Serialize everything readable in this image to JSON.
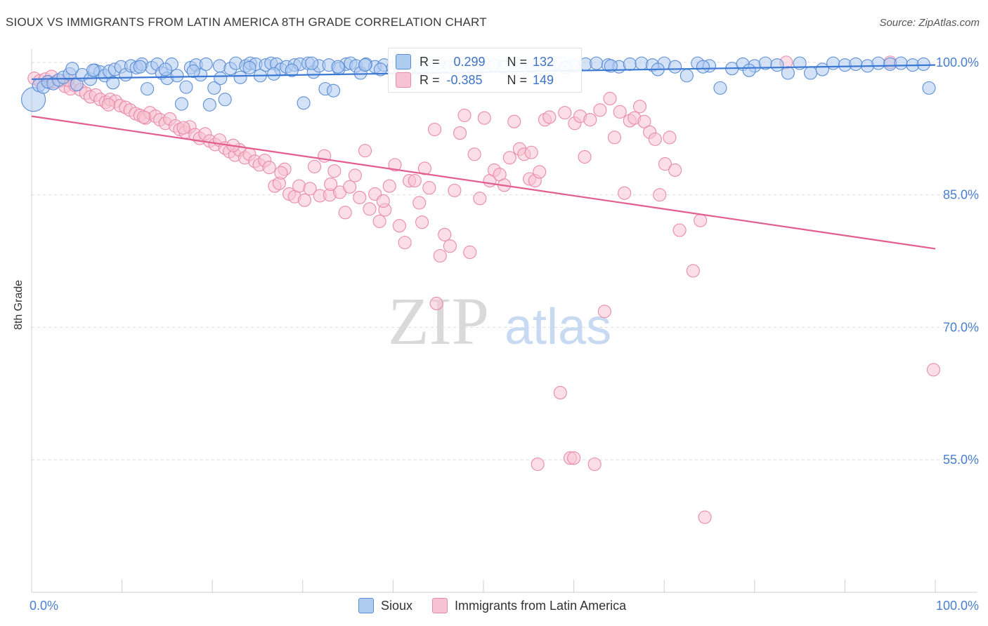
{
  "header": {
    "title": "SIOUX VS IMMIGRANTS FROM LATIN AMERICA 8TH GRADE CORRELATION CHART",
    "source": "Source: ZipAtlas.com"
  },
  "watermark": {
    "zip": "ZIP",
    "atlas": "atlas"
  },
  "legend_box": {
    "rows": [
      {
        "r_label": "R =",
        "r_value": "0.299",
        "n_label": "N =",
        "n_value": "132"
      },
      {
        "r_label": "R =",
        "r_value": "-0.385",
        "n_label": "N =",
        "n_value": "149"
      }
    ]
  },
  "colors": {
    "sioux_fill": "#aecbf0",
    "sioux_stroke": "#5b8ed6",
    "sioux_line": "#3a78d4",
    "latin_fill": "#f7c3d4",
    "latin_stroke": "#e98aaa",
    "latin_line": "#e35d8e",
    "tick_label": "#4a7fd0",
    "grid": "#dddddd"
  },
  "chart_data": {
    "type": "scatter",
    "title": "SIOUX VS IMMIGRANTS FROM LATIN AMERICA 8TH GRADE CORRELATION CHART",
    "xlabel": "",
    "ylabel": "8th Grade",
    "xlim": [
      0,
      100
    ],
    "ylim": [
      40,
      101.5
    ],
    "x_tick_labels": [
      "0.0%",
      "100.0%"
    ],
    "y_ticks": [
      55,
      70,
      85,
      100
    ],
    "y_tick_labels": [
      "55.0%",
      "70.0%",
      "85.0%",
      "100.0%"
    ],
    "legend": [
      "Sioux",
      "Immigrants from Latin America"
    ],
    "series": [
      {
        "name": "Sioux",
        "r": 0.299,
        "n": 132,
        "trend": {
          "x": [
            0,
            100
          ],
          "y": [
            98.1,
            99.7
          ]
        },
        "points": [
          [
            0.2,
            95.8
          ],
          [
            0.8,
            97.4
          ],
          [
            1.3,
            97.2
          ],
          [
            1.8,
            97.8
          ],
          [
            2.4,
            97.6
          ],
          [
            3.0,
            98.0
          ],
          [
            3.5,
            98.3
          ],
          [
            4.2,
            98.7
          ],
          [
            4.5,
            99.3
          ],
          [
            5.0,
            97.5
          ],
          [
            5.6,
            98.6
          ],
          [
            6.5,
            98.1
          ],
          [
            7.0,
            99.1
          ],
          [
            7.6,
            98.9
          ],
          [
            8.1,
            98.5
          ],
          [
            8.6,
            99.0
          ],
          [
            9.2,
            99.2
          ],
          [
            9.9,
            99.5
          ],
          [
            10.4,
            98.6
          ],
          [
            11.0,
            99.6
          ],
          [
            11.6,
            99.4
          ],
          [
            12.2,
            99.8
          ],
          [
            12.8,
            97.0
          ],
          [
            13.3,
            99.4
          ],
          [
            13.9,
            99.8
          ],
          [
            14.4,
            98.8
          ],
          [
            15.0,
            98.2
          ],
          [
            15.5,
            99.8
          ],
          [
            16.1,
            98.5
          ],
          [
            16.6,
            95.3
          ],
          [
            17.1,
            97.2
          ],
          [
            17.6,
            99.4
          ],
          [
            18.2,
            99.7
          ],
          [
            18.7,
            98.6
          ],
          [
            19.3,
            99.8
          ],
          [
            19.7,
            95.2
          ],
          [
            20.2,
            97.1
          ],
          [
            20.8,
            99.6
          ],
          [
            21.4,
            95.8
          ],
          [
            22.0,
            99.3
          ],
          [
            22.6,
            99.9
          ],
          [
            23.1,
            98.3
          ],
          [
            23.7,
            99.6
          ],
          [
            24.2,
            99.9
          ],
          [
            24.8,
            99.8
          ],
          [
            25.3,
            98.5
          ],
          [
            25.9,
            99.7
          ],
          [
            26.5,
            99.9
          ],
          [
            27.1,
            99.8
          ],
          [
            27.6,
            99.2
          ],
          [
            28.2,
            99.5
          ],
          [
            29.1,
            99.7
          ],
          [
            29.7,
            99.8
          ],
          [
            30.1,
            95.4
          ],
          [
            30.6,
            99.9
          ],
          [
            31.2,
            98.9
          ],
          [
            31.8,
            99.6
          ],
          [
            32.5,
            97.0
          ],
          [
            32.9,
            99.7
          ],
          [
            33.4,
            96.8
          ],
          [
            34.0,
            99.3
          ],
          [
            34.8,
            99.8
          ],
          [
            35.3,
            99.9
          ],
          [
            35.9,
            99.6
          ],
          [
            36.4,
            98.8
          ],
          [
            37.0,
            99.8
          ],
          [
            38.0,
            99.5
          ],
          [
            39.0,
            99.7
          ],
          [
            40.0,
            99.4
          ],
          [
            41.2,
            99.8
          ],
          [
            42.5,
            99.6
          ],
          [
            43.8,
            99.7
          ],
          [
            45.0,
            99.9
          ],
          [
            46.3,
            99.5
          ],
          [
            47.5,
            99.8
          ],
          [
            48.8,
            99.6
          ],
          [
            50.0,
            99.9
          ],
          [
            51.2,
            99.7
          ],
          [
            52.3,
            99.5
          ],
          [
            53.5,
            99.9
          ],
          [
            54.8,
            99.6
          ],
          [
            56.0,
            99.8
          ],
          [
            57.3,
            99.7
          ],
          [
            58.5,
            99.9
          ],
          [
            60.0,
            99.6
          ],
          [
            61.3,
            99.8
          ],
          [
            62.5,
            99.9
          ],
          [
            63.8,
            99.7
          ],
          [
            65.0,
            99.5
          ],
          [
            66.2,
            99.8
          ],
          [
            67.5,
            99.9
          ],
          [
            68.7,
            99.7
          ],
          [
            70.0,
            99.9
          ],
          [
            71.2,
            99.5
          ],
          [
            72.5,
            98.5
          ],
          [
            73.7,
            99.9
          ],
          [
            75.0,
            99.6
          ],
          [
            76.2,
            97.1
          ],
          [
            77.5,
            99.3
          ],
          [
            78.7,
            99.8
          ],
          [
            80.0,
            99.6
          ],
          [
            81.2,
            99.9
          ],
          [
            82.5,
            99.7
          ],
          [
            83.7,
            98.8
          ],
          [
            85.0,
            99.9
          ],
          [
            86.2,
            98.8
          ],
          [
            87.5,
            99.2
          ],
          [
            88.7,
            99.9
          ],
          [
            90.0,
            99.7
          ],
          [
            91.2,
            99.8
          ],
          [
            92.5,
            99.6
          ],
          [
            93.7,
            99.9
          ],
          [
            95.0,
            99.8
          ],
          [
            96.2,
            99.9
          ],
          [
            97.5,
            99.7
          ],
          [
            98.7,
            99.8
          ],
          [
            99.3,
            97.1
          ],
          [
            6.8,
            99.1
          ],
          [
            9.0,
            97.7
          ],
          [
            12.0,
            99.5
          ],
          [
            14.8,
            99.2
          ],
          [
            17.9,
            99.0
          ],
          [
            20.9,
            98.2
          ],
          [
            24.1,
            99.4
          ],
          [
            26.8,
            98.7
          ],
          [
            28.8,
            99.1
          ],
          [
            31.0,
            99.9
          ],
          [
            33.9,
            99.5
          ],
          [
            36.9,
            99.7
          ],
          [
            38.6,
            99.2
          ],
          [
            40.6,
            99.8
          ],
          [
            43.1,
            99.3
          ],
          [
            47.0,
            99.6
          ],
          [
            49.5,
            99.8
          ],
          [
            55.4,
            99.5
          ],
          [
            59.1,
            99.4
          ],
          [
            64.1,
            99.6
          ],
          [
            69.3,
            99.2
          ],
          [
            74.3,
            99.5
          ],
          [
            79.4,
            99.1
          ]
        ]
      },
      {
        "name": "Immigrants from Latin America",
        "r": -0.385,
        "n": 149,
        "trend": {
          "x": [
            0,
            100
          ],
          "y": [
            93.9,
            78.9
          ]
        },
        "points": [
          [
            0.3,
            98.2
          ],
          [
            0.9,
            97.9
          ],
          [
            1.5,
            98.1
          ],
          [
            2.0,
            97.7
          ],
          [
            2.6,
            97.8
          ],
          [
            3.2,
            97.9
          ],
          [
            3.7,
            97.3
          ],
          [
            4.3,
            97.0
          ],
          [
            4.8,
            97.4
          ],
          [
            5.4,
            96.9
          ],
          [
            6.0,
            96.5
          ],
          [
            6.5,
            96.1
          ],
          [
            7.1,
            96.3
          ],
          [
            7.6,
            95.8
          ],
          [
            8.2,
            95.5
          ],
          [
            8.7,
            95.8
          ],
          [
            9.3,
            95.6
          ],
          [
            9.8,
            95.1
          ],
          [
            10.4,
            94.9
          ],
          [
            10.9,
            94.6
          ],
          [
            11.5,
            94.2
          ],
          [
            12.0,
            94.0
          ],
          [
            12.6,
            93.7
          ],
          [
            13.1,
            94.3
          ],
          [
            13.7,
            93.9
          ],
          [
            14.2,
            93.5
          ],
          [
            14.8,
            93.1
          ],
          [
            15.3,
            93.6
          ],
          [
            15.9,
            92.8
          ],
          [
            16.4,
            92.4
          ],
          [
            17.0,
            92.1
          ],
          [
            17.5,
            92.7
          ],
          [
            18.1,
            91.8
          ],
          [
            18.6,
            91.4
          ],
          [
            19.2,
            91.9
          ],
          [
            19.7,
            91.1
          ],
          [
            20.3,
            90.7
          ],
          [
            20.8,
            91.2
          ],
          [
            21.4,
            90.3
          ],
          [
            21.9,
            89.9
          ],
          [
            22.5,
            89.5
          ],
          [
            23.0,
            90.1
          ],
          [
            23.6,
            89.2
          ],
          [
            24.1,
            89.6
          ],
          [
            24.7,
            88.8
          ],
          [
            25.2,
            88.4
          ],
          [
            25.8,
            88.9
          ],
          [
            26.3,
            88.1
          ],
          [
            26.9,
            86.0
          ],
          [
            27.4,
            86.3
          ],
          [
            28.0,
            87.9
          ],
          [
            28.5,
            85.1
          ],
          [
            29.1,
            84.8
          ],
          [
            29.6,
            86.0
          ],
          [
            30.2,
            84.4
          ],
          [
            30.8,
            85.7
          ],
          [
            31.3,
            88.2
          ],
          [
            31.9,
            84.9
          ],
          [
            32.4,
            89.4
          ],
          [
            33.0,
            85.0
          ],
          [
            33.5,
            87.7
          ],
          [
            34.1,
            85.3
          ],
          [
            34.7,
            83.0
          ],
          [
            35.2,
            85.9
          ],
          [
            35.8,
            87.2
          ],
          [
            36.3,
            84.7
          ],
          [
            36.9,
            90.0
          ],
          [
            37.4,
            83.4
          ],
          [
            38.0,
            85.1
          ],
          [
            38.5,
            82.0
          ],
          [
            39.1,
            83.3
          ],
          [
            39.6,
            86.0
          ],
          [
            40.2,
            88.4
          ],
          [
            40.7,
            81.5
          ],
          [
            41.3,
            79.6
          ],
          [
            41.8,
            86.6
          ],
          [
            42.4,
            86.6
          ],
          [
            42.9,
            84.1
          ],
          [
            43.5,
            88.0
          ],
          [
            44.0,
            85.8
          ],
          [
            44.6,
            92.4
          ],
          [
            45.2,
            78.1
          ],
          [
            45.7,
            80.5
          ],
          [
            46.3,
            79.2
          ],
          [
            46.8,
            85.5
          ],
          [
            47.4,
            92.0
          ],
          [
            47.9,
            94.0
          ],
          [
            48.5,
            78.5
          ],
          [
            49.0,
            89.6
          ],
          [
            49.6,
            84.6
          ],
          [
            50.1,
            93.7
          ],
          [
            50.7,
            86.6
          ],
          [
            51.2,
            87.8
          ],
          [
            51.8,
            87.3
          ],
          [
            52.3,
            86.1
          ],
          [
            52.9,
            89.2
          ],
          [
            53.4,
            93.3
          ],
          [
            54.0,
            90.2
          ],
          [
            54.5,
            89.6
          ],
          [
            55.1,
            86.8
          ],
          [
            55.7,
            86.6
          ],
          [
            56.2,
            87.6
          ],
          [
            56.8,
            93.5
          ],
          [
            57.3,
            93.8
          ],
          [
            58.5,
            62.6
          ],
          [
            59.0,
            94.3
          ],
          [
            59.6,
            55.2
          ],
          [
            60.1,
            93.1
          ],
          [
            60.7,
            93.9
          ],
          [
            61.2,
            89.3
          ],
          [
            61.8,
            93.5
          ],
          [
            62.3,
            54.5
          ],
          [
            62.9,
            94.6
          ],
          [
            63.4,
            71.8
          ],
          [
            64.0,
            95.9
          ],
          [
            64.5,
            91.5
          ],
          [
            65.1,
            94.4
          ],
          [
            65.6,
            85.2
          ],
          [
            66.2,
            93.4
          ],
          [
            66.7,
            93.7
          ],
          [
            67.3,
            95.0
          ],
          [
            67.8,
            93.3
          ],
          [
            68.4,
            92.1
          ],
          [
            69.0,
            91.3
          ],
          [
            69.5,
            85.0
          ],
          [
            70.1,
            88.5
          ],
          [
            70.6,
            91.5
          ],
          [
            71.2,
            87.8
          ],
          [
            71.7,
            81.0
          ],
          [
            73.2,
            76.4
          ],
          [
            74.0,
            82.1
          ],
          [
            74.5,
            48.5
          ],
          [
            56.0,
            54.5
          ],
          [
            60.0,
            55.2
          ],
          [
            44.8,
            72.7
          ],
          [
            99.8,
            65.2
          ],
          [
            83.5,
            100.0
          ],
          [
            95.0,
            100.0
          ],
          [
            4.0,
            98.0
          ],
          [
            2.2,
            98.4
          ],
          [
            8.5,
            95.2
          ],
          [
            12.4,
            93.8
          ],
          [
            16.8,
            92.6
          ],
          [
            22.3,
            90.6
          ],
          [
            27.6,
            87.5
          ],
          [
            33.1,
            86.2
          ],
          [
            38.9,
            84.3
          ],
          [
            43.2,
            81.9
          ],
          [
            55.3,
            89.8
          ]
        ]
      }
    ]
  }
}
